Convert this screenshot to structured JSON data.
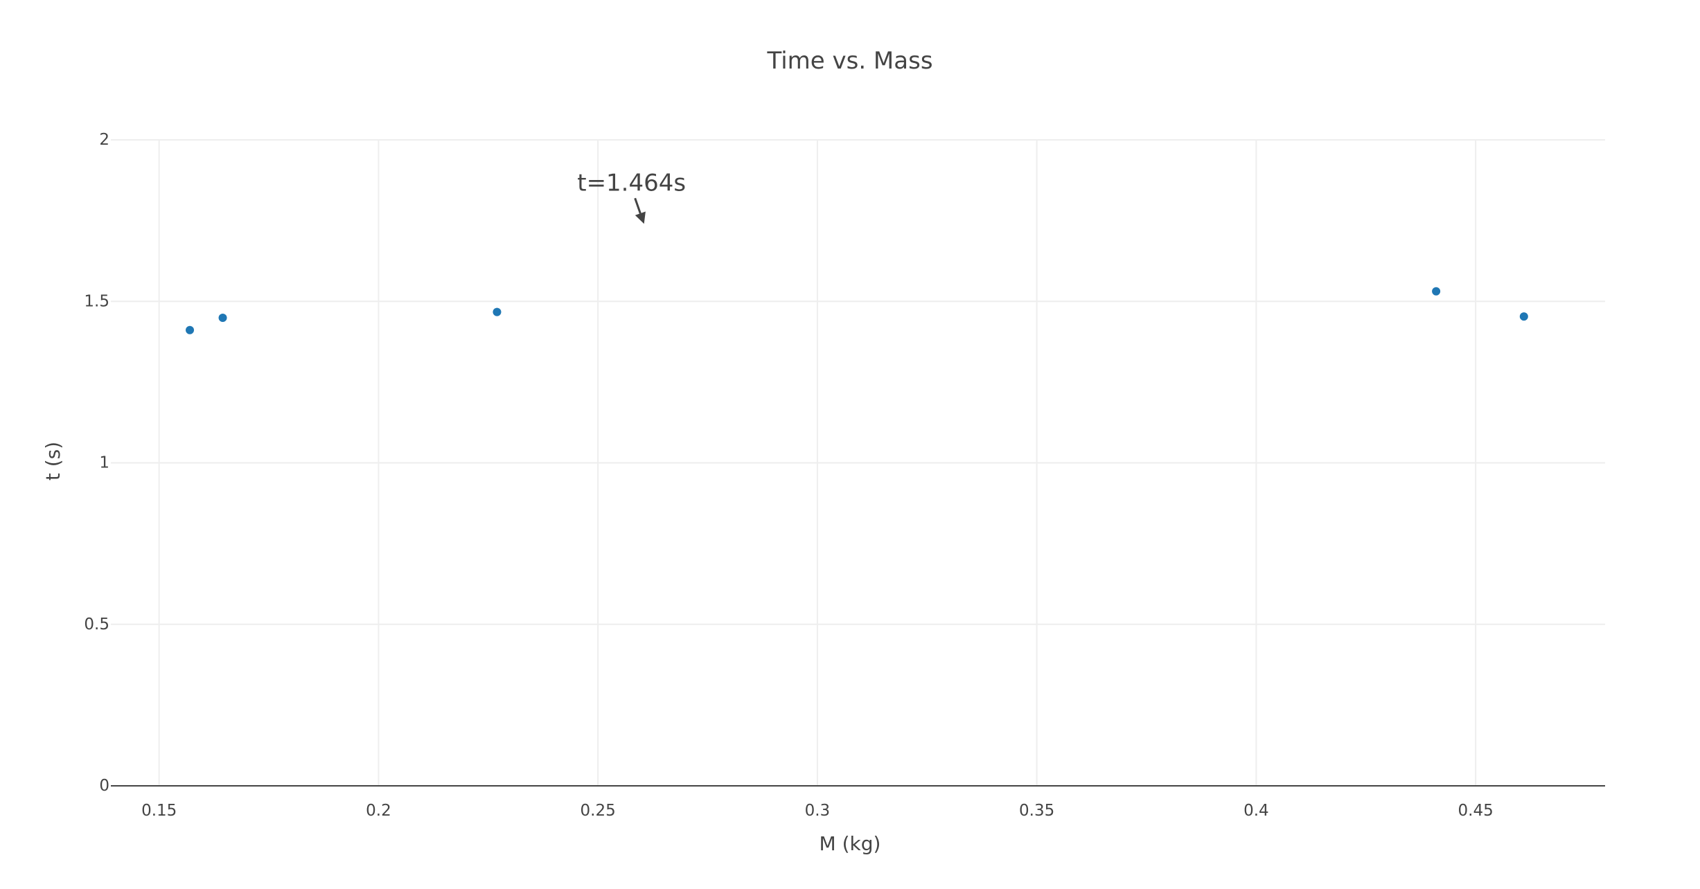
{
  "chart_data": {
    "type": "scatter",
    "title": "Time vs. Mass",
    "xlabel": "M (kg)",
    "ylabel": "t (s)",
    "xlim": [
      0.139,
      0.4795
    ],
    "ylim": [
      0,
      2
    ],
    "x_ticks": [
      0.15,
      0.2,
      0.25,
      0.3,
      0.35,
      0.4,
      0.45
    ],
    "x_tick_labels": [
      "0.15",
      "0.2",
      "0.25",
      "0.3",
      "0.35",
      "0.4",
      "0.45"
    ],
    "y_ticks": [
      0,
      0.5,
      1,
      1.5,
      2
    ],
    "y_tick_labels": [
      "0",
      "0.5",
      "1",
      "1.5",
      "2"
    ],
    "grid": true,
    "series": [
      {
        "color": "#1f77b4",
        "x": [
          0.157,
          0.1645,
          0.227,
          0.441,
          0.461
        ],
        "y": [
          1.411,
          1.449,
          1.467,
          1.531,
          1.453
        ]
      }
    ],
    "annotations": [
      {
        "text": "t=1.464s",
        "x": 0.2605,
        "y": 1.74
      }
    ]
  }
}
